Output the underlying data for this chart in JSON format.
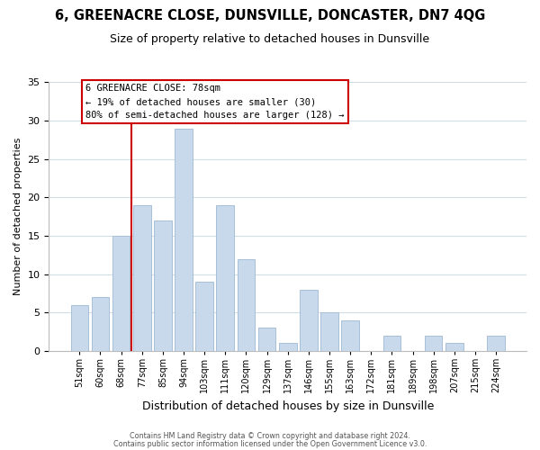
{
  "title": "6, GREENACRE CLOSE, DUNSVILLE, DONCASTER, DN7 4QG",
  "subtitle": "Size of property relative to detached houses in Dunsville",
  "xlabel": "Distribution of detached houses by size in Dunsville",
  "ylabel": "Number of detached properties",
  "bar_labels": [
    "51sqm",
    "60sqm",
    "68sqm",
    "77sqm",
    "85sqm",
    "94sqm",
    "103sqm",
    "111sqm",
    "120sqm",
    "129sqm",
    "137sqm",
    "146sqm",
    "155sqm",
    "163sqm",
    "172sqm",
    "181sqm",
    "189sqm",
    "198sqm",
    "207sqm",
    "215sqm",
    "224sqm"
  ],
  "bar_values": [
    6,
    7,
    15,
    19,
    17,
    29,
    9,
    19,
    12,
    3,
    1,
    8,
    5,
    4,
    0,
    2,
    0,
    2,
    1,
    0,
    2
  ],
  "bar_color": "#c8d9ec",
  "bar_edge_color": "#a8c0d8",
  "vline_index": 3,
  "vline_color": "#cc0000",
  "annotation_title": "6 GREENACRE CLOSE: 78sqm",
  "annotation_line1": "← 19% of detached houses are smaller (30)",
  "annotation_line2": "80% of semi-detached houses are larger (128) →",
  "annotation_box_edgecolor": "#cc0000",
  "annotation_box_facecolor": "#ffffff",
  "ylim": [
    0,
    35
  ],
  "yticks": [
    0,
    5,
    10,
    15,
    20,
    25,
    30,
    35
  ],
  "footer1": "Contains HM Land Registry data © Crown copyright and database right 2024.",
  "footer2": "Contains public sector information licensed under the Open Government Licence v3.0.",
  "bg_color": "#ffffff",
  "title_fontsize": 10.5,
  "subtitle_fontsize": 9,
  "ylabel_fontsize": 8,
  "xlabel_fontsize": 9
}
